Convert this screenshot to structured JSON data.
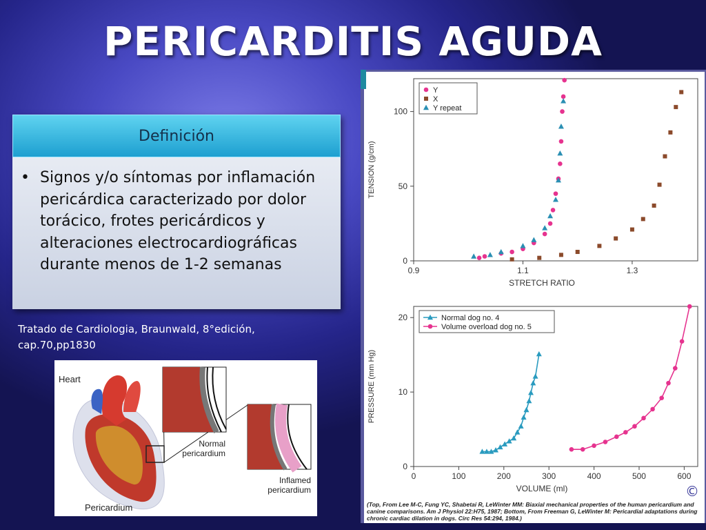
{
  "slide": {
    "title": "PERICARDITIS AGUDA",
    "definition_header": "Definición",
    "definition_text": "Signos y/o síntomas por inflamación pericárdica caracterizado por dolor torácico, frotes pericárdicos y alteraciones electrocardiográficas durante menos de 1-2 semanas",
    "citation": "Tratado de Cardiologia, Braunwald, 8°edición, cap.70,pp1830",
    "figure_caption": "(Top, From Lee M-C, Fung YC, Shabetai R, LeWinter MM: Biaxial mechanical properties of the human pericardium and canine comparisons. Am J Physiol 22:H75, 1987; Bottom, From Freeman G, LeWinter M: Pericardial adaptations during chronic cardiac dilation in dogs. Circ Res 54:294, 1984.)",
    "copyright_symbol": "©"
  },
  "heart_illustration": {
    "label_heart": "Heart",
    "label_normal": "Normal pericardium",
    "label_inflamed": "Inflamed pericardium",
    "label_pericardium": "Pericardium",
    "colors": {
      "muscle": "#c0392b",
      "vessel": "#d63a2f",
      "membrane": "#c8cce0"
    }
  },
  "chart_data": [
    {
      "type": "scatter",
      "title": "",
      "xlabel": "STRETCH RATIO",
      "ylabel": "TENSION (g/cm)",
      "xlim": [
        0.9,
        1.42
      ],
      "ylim": [
        0,
        122
      ],
      "x_ticks": [
        0.9,
        1.1,
        1.3
      ],
      "y_ticks": [
        0,
        50,
        100
      ],
      "legend_position": "top-left",
      "series": [
        {
          "name": "Y",
          "marker": "circle",
          "color": "#e6338f",
          "points": [
            [
              1.02,
              2
            ],
            [
              1.03,
              3
            ],
            [
              1.06,
              5
            ],
            [
              1.08,
              6
            ],
            [
              1.1,
              8
            ],
            [
              1.12,
              12
            ],
            [
              1.14,
              18
            ],
            [
              1.15,
              25
            ],
            [
              1.155,
              34
            ],
            [
              1.16,
              45
            ],
            [
              1.165,
              55
            ],
            [
              1.168,
              65
            ],
            [
              1.17,
              80
            ],
            [
              1.172,
              100
            ],
            [
              1.174,
              110
            ],
            [
              1.176,
              121
            ]
          ]
        },
        {
          "name": "X",
          "marker": "square",
          "color": "#8b4a2b",
          "points": [
            [
              1.08,
              1
            ],
            [
              1.13,
              2
            ],
            [
              1.17,
              4
            ],
            [
              1.2,
              6
            ],
            [
              1.24,
              10
            ],
            [
              1.27,
              15
            ],
            [
              1.3,
              21
            ],
            [
              1.32,
              28
            ],
            [
              1.34,
              37
            ],
            [
              1.35,
              51
            ],
            [
              1.36,
              70
            ],
            [
              1.37,
              86
            ],
            [
              1.38,
              103
            ],
            [
              1.39,
              113
            ]
          ]
        },
        {
          "name": "Y repeat",
          "marker": "triangle",
          "color": "#2a8fb3",
          "points": [
            [
              1.01,
              3
            ],
            [
              1.04,
              4
            ],
            [
              1.06,
              6
            ],
            [
              1.1,
              10
            ],
            [
              1.12,
              14
            ],
            [
              1.14,
              22
            ],
            [
              1.15,
              30
            ],
            [
              1.16,
              41
            ],
            [
              1.165,
              54
            ],
            [
              1.168,
              72
            ],
            [
              1.17,
              90
            ],
            [
              1.174,
              107
            ]
          ]
        }
      ]
    },
    {
      "type": "line",
      "title": "",
      "xlabel": "VOLUME (ml)",
      "ylabel": "PRESSURE (mm Hg)",
      "xlim": [
        0,
        630
      ],
      "ylim": [
        0,
        21.5
      ],
      "x_ticks": [
        0,
        100,
        200,
        300,
        400,
        500,
        600
      ],
      "y_ticks": [
        0,
        10,
        20
      ],
      "legend_position": "top-left",
      "series": [
        {
          "name": "Normal dog no. 4",
          "marker": "triangle",
          "color": "#2a9bbf",
          "points": [
            [
              152,
              2
            ],
            [
              162,
              2
            ],
            [
              172,
              2
            ],
            [
              182,
              2.2
            ],
            [
              192,
              2.6
            ],
            [
              202,
              3
            ],
            [
              212,
              3.4
            ],
            [
              222,
              3.8
            ],
            [
              230,
              4.6
            ],
            [
              238,
              5.4
            ],
            [
              244,
              6.6
            ],
            [
              250,
              7.6
            ],
            [
              256,
              8.8
            ],
            [
              260,
              9.9
            ],
            [
              265,
              11.2
            ],
            [
              270,
              12.1
            ],
            [
              278,
              15.1
            ]
          ]
        },
        {
          "name": "Volume overload dog no. 5",
          "marker": "circle",
          "color": "#e6338f",
          "points": [
            [
              350,
              2.3
            ],
            [
              375,
              2.3
            ],
            [
              400,
              2.8
            ],
            [
              425,
              3.3
            ],
            [
              450,
              4
            ],
            [
              470,
              4.6
            ],
            [
              490,
              5.4
            ],
            [
              510,
              6.5
            ],
            [
              530,
              7.7
            ],
            [
              550,
              9.2
            ],
            [
              565,
              11.2
            ],
            [
              580,
              13.2
            ],
            [
              595,
              16.8
            ],
            [
              612,
              21.5
            ]
          ]
        }
      ]
    }
  ]
}
